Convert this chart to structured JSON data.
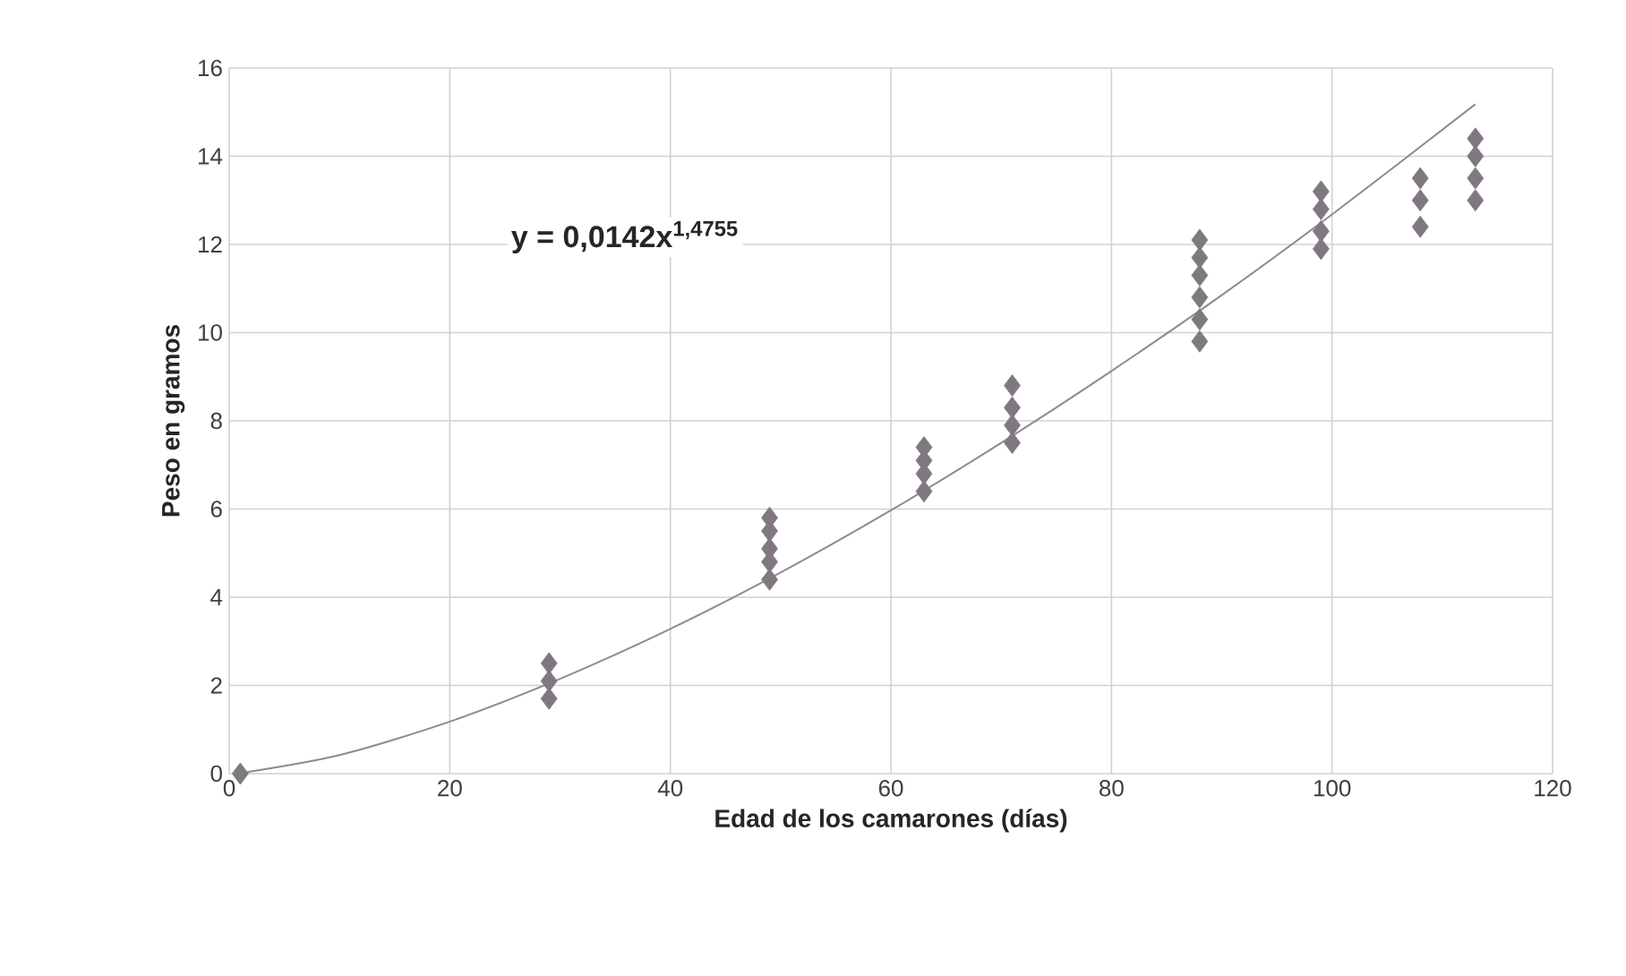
{
  "chart_data": {
    "type": "scatter",
    "xlabel": "Edad de los camarones (días)",
    "ylabel": "Peso en gramos",
    "annotations": [
      "y = 0,0142x$^{1,4755}$"
    ],
    "xlim": [
      0,
      120
    ],
    "xticks": [
      0,
      20,
      40,
      60,
      80,
      100,
      120
    ],
    "ylim": [
      0,
      16
    ],
    "yticks": [
      0,
      2,
      4,
      6,
      8,
      10,
      12,
      14,
      16
    ],
    "grid": true,
    "marker": "diamond",
    "series": [
      {
        "color": "#807880",
        "x": [
          1,
          29,
          29,
          29,
          49,
          49,
          49,
          49,
          49,
          63,
          63,
          63,
          63,
          71,
          71,
          71,
          71,
          88,
          88,
          88,
          88,
          88,
          88,
          99,
          99,
          99,
          99,
          108,
          108,
          108,
          113,
          113,
          113,
          113
        ],
        "values": [
          0,
          1.7,
          2.1,
          2.5,
          4.4,
          4.8,
          5.1,
          5.5,
          5.8,
          6.4,
          6.8,
          7.1,
          7.4,
          7.5,
          7.9,
          8.3,
          8.8,
          9.8,
          10.3,
          10.8,
          11.3,
          11.7,
          12.1,
          11.9,
          12.3,
          12.8,
          13.2,
          12.4,
          13.0,
          13.5,
          13.0,
          13.5,
          14.0,
          14.4
        ]
      },
      {
        "type": "line",
        "color": "#8c8c8c",
        "marker": "none",
        "x": [
          1,
          10,
          20,
          30,
          40,
          50,
          60,
          70,
          80,
          90,
          100,
          113
        ],
        "values": [
          0.01,
          0.42,
          1.18,
          2.15,
          3.28,
          4.56,
          5.97,
          7.5,
          9.13,
          10.85,
          12.68,
          15.18
        ]
      }
    ]
  }
}
